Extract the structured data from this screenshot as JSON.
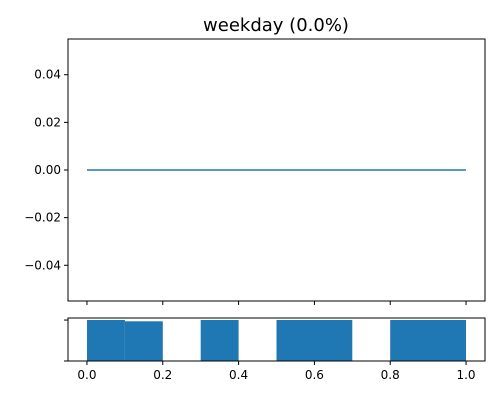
{
  "chart_data": [
    {
      "type": "line",
      "title": "weekday (0.0%)",
      "xlabel": "",
      "ylabel": "",
      "xlim": [
        -0.05,
        1.05
      ],
      "ylim": [
        -0.055,
        0.055
      ],
      "x": [
        0.0,
        1.0
      ],
      "series": [
        {
          "values": [
            0.0,
            0.0
          ],
          "color": "#1f77b4"
        }
      ],
      "y_ticks": [
        {
          "value": 0.04,
          "label": "0.04"
        },
        {
          "value": 0.02,
          "label": "0.02"
        },
        {
          "value": 0.0,
          "label": "0.00"
        },
        {
          "value": -0.02,
          "label": "−0.02"
        },
        {
          "value": -0.04,
          "label": "−0.04"
        }
      ],
      "x_ticks": [
        0.0,
        0.2,
        0.4,
        0.6,
        0.8,
        1.0
      ],
      "x_tick_labels_shown": false,
      "grid": false
    },
    {
      "type": "bar",
      "title": "",
      "xlabel": "",
      "ylabel": "",
      "xlim": [
        -0.05,
        1.05
      ],
      "ylim": [
        0,
        1.05
      ],
      "color": "#1f77b4",
      "bars": [
        {
          "x0": 0.0,
          "x1": 0.1,
          "height": 1.0
        },
        {
          "x0": 0.1,
          "x1": 0.2,
          "height": 0.97
        },
        {
          "x0": 0.3,
          "x1": 0.4,
          "height": 1.0
        },
        {
          "x0": 0.5,
          "x1": 0.7,
          "height": 1.0
        },
        {
          "x0": 0.8,
          "x1": 1.0,
          "height": 1.0
        }
      ],
      "y_ticks": [
        0.0,
        1.0
      ],
      "y_tick_labels_shown": false,
      "x_ticks": [
        {
          "value": 0.0,
          "label": "0.0"
        },
        {
          "value": 0.2,
          "label": "0.2"
        },
        {
          "value": 0.4,
          "label": "0.4"
        },
        {
          "value": 0.6,
          "label": "0.6"
        },
        {
          "value": 0.8,
          "label": "0.8"
        },
        {
          "value": 1.0,
          "label": "1.0"
        }
      ],
      "grid": false
    }
  ]
}
